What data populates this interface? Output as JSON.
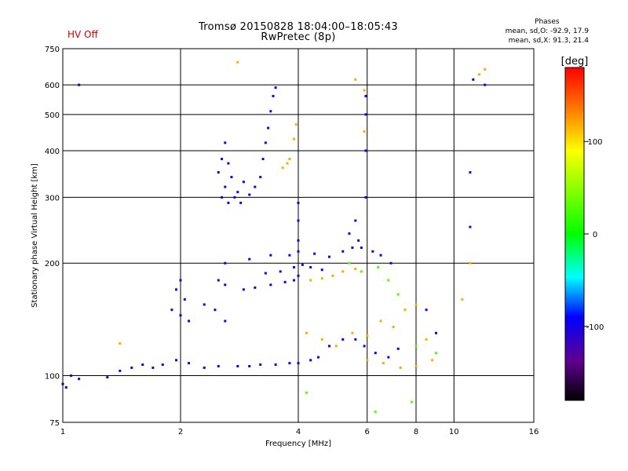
{
  "header": {
    "hv_status": "HV Off",
    "title": "Tromsø 20150828 18:04:00–18:05:43",
    "subtitle": "RwPretec (8p)",
    "stats_title": "Phases",
    "stats_line1": "mean, sd,O: -92.9, 17.9",
    "stats_line2": "mean, sd,X:  91.3, 21.4"
  },
  "colors": {
    "background": "#ffffff",
    "frame": "#000000",
    "hv_off": "#d00000"
  },
  "chart_data": {
    "type": "scatter",
    "title": "Tromsø 20150828 18:04:00–18:05:43",
    "subtitle": "RwPretec (8p)",
    "xlabel": "Frequency [MHz]",
    "ylabel": "Stationary phase Virtual Height [km]",
    "x_scale": "log",
    "y_scale": "log",
    "xlim": [
      1,
      16
    ],
    "ylim": [
      75,
      750
    ],
    "x_ticks": [
      1,
      2,
      4,
      6,
      8,
      10,
      16
    ],
    "x_tick_labels": [
      "1",
      "2",
      "4",
      "6",
      "8",
      "10",
      "16"
    ],
    "y_ticks": [
      75,
      100,
      200,
      300,
      400,
      500,
      600,
      750
    ],
    "y_tick_labels": [
      "75",
      "100",
      "200",
      "300",
      "400",
      "500",
      "600",
      "750"
    ],
    "grid": true,
    "colorbar": {
      "label": "[deg]",
      "range": [
        -180,
        180
      ],
      "ticks": [
        100,
        0,
        -100
      ],
      "tick_labels": [
        "100",
        "0",
        "-100"
      ],
      "colormap": "rainbow"
    },
    "series": [
      {
        "type": "scatter",
        "phase": -100,
        "points": [
          [
            1.0,
            95
          ],
          [
            1.02,
            93
          ],
          [
            1.05,
            100
          ],
          [
            1.1,
            98
          ],
          [
            1.3,
            99
          ],
          [
            1.4,
            103
          ],
          [
            1.5,
            105
          ],
          [
            1.6,
            107
          ],
          [
            1.7,
            105
          ],
          [
            1.8,
            107
          ],
          [
            1.95,
            110
          ],
          [
            2.1,
            108
          ],
          [
            2.3,
            105
          ],
          [
            2.5,
            106
          ],
          [
            2.8,
            106
          ],
          [
            3.0,
            106
          ],
          [
            3.2,
            107
          ],
          [
            3.5,
            107
          ],
          [
            3.8,
            108
          ],
          [
            4.0,
            108
          ],
          [
            4.3,
            110
          ],
          [
            4.5,
            112
          ],
          [
            4.8,
            120
          ],
          [
            5.2,
            125
          ],
          [
            5.6,
            125
          ],
          [
            5.9,
            120
          ],
          [
            6.3,
            115
          ],
          [
            6.8,
            112
          ],
          [
            7.2,
            118
          ],
          [
            1.9,
            150
          ],
          [
            2.0,
            145
          ],
          [
            2.05,
            160
          ],
          [
            2.1,
            140
          ],
          [
            1.95,
            170
          ],
          [
            2.0,
            180
          ],
          [
            2.3,
            155
          ],
          [
            2.45,
            150
          ],
          [
            2.6,
            140
          ],
          [
            2.5,
            180
          ],
          [
            2.6,
            175
          ],
          [
            2.9,
            170
          ],
          [
            3.1,
            172
          ],
          [
            3.4,
            175
          ],
          [
            3.7,
            178
          ],
          [
            3.9,
            180
          ],
          [
            4.0,
            185
          ],
          [
            3.3,
            188
          ],
          [
            3.6,
            190
          ],
          [
            3.9,
            195
          ],
          [
            4.1,
            198
          ],
          [
            4.3,
            195
          ],
          [
            4.6,
            192
          ],
          [
            2.6,
            200
          ],
          [
            3.0,
            205
          ],
          [
            3.4,
            210
          ],
          [
            3.8,
            210
          ],
          [
            4.0,
            215
          ],
          [
            4.4,
            212
          ],
          [
            4.8,
            208
          ],
          [
            5.2,
            215
          ],
          [
            5.5,
            220
          ],
          [
            5.7,
            230
          ],
          [
            6.2,
            215
          ],
          [
            6.5,
            210
          ],
          [
            6.9,
            200
          ],
          [
            2.55,
            300
          ],
          [
            2.6,
            320
          ],
          [
            2.65,
            290
          ],
          [
            2.7,
            340
          ],
          [
            2.75,
            300
          ],
          [
            2.8,
            310
          ],
          [
            2.85,
            290
          ],
          [
            2.9,
            330
          ],
          [
            3.0,
            305
          ],
          [
            3.1,
            320
          ],
          [
            3.2,
            340
          ],
          [
            3.25,
            380
          ],
          [
            3.3,
            420
          ],
          [
            3.35,
            460
          ],
          [
            3.4,
            510
          ],
          [
            3.45,
            560
          ],
          [
            3.5,
            590
          ],
          [
            2.55,
            380
          ],
          [
            2.5,
            350
          ],
          [
            2.6,
            420
          ],
          [
            2.65,
            370
          ],
          [
            4.0,
            230
          ],
          [
            4.0,
            260
          ],
          [
            4.0,
            290
          ],
          [
            5.4,
            240
          ],
          [
            5.6,
            260
          ],
          [
            5.8,
            220
          ],
          [
            5.95,
            300
          ],
          [
            5.95,
            400
          ],
          [
            5.95,
            500
          ],
          [
            5.95,
            560
          ],
          [
            8.5,
            150
          ],
          [
            9.0,
            130
          ],
          [
            11.0,
            350
          ],
          [
            11.0,
            250
          ],
          [
            11.2,
            620
          ],
          [
            12.0,
            600
          ],
          [
            1.1,
            600
          ]
        ]
      },
      {
        "type": "scatter",
        "phase": 120,
        "points": [
          [
            3.65,
            360
          ],
          [
            3.75,
            370
          ],
          [
            3.8,
            380
          ],
          [
            3.9,
            430
          ],
          [
            3.95,
            470
          ],
          [
            4.3,
            180
          ],
          [
            4.6,
            182
          ],
          [
            4.9,
            185
          ],
          [
            5.2,
            190
          ],
          [
            5.6,
            193
          ],
          [
            4.2,
            130
          ],
          [
            4.6,
            125
          ],
          [
            5.0,
            120
          ],
          [
            5.5,
            130
          ],
          [
            6.0,
            128
          ],
          [
            6.5,
            140
          ],
          [
            7.0,
            135
          ],
          [
            7.5,
            150
          ],
          [
            8.0,
            155
          ],
          [
            8.5,
            125
          ],
          [
            6.0,
            110
          ],
          [
            6.6,
            108
          ],
          [
            7.3,
            105
          ],
          [
            8.0,
            106
          ],
          [
            8.8,
            110
          ],
          [
            5.6,
            620
          ],
          [
            5.9,
            580
          ],
          [
            5.9,
            450
          ],
          [
            10.5,
            160
          ],
          [
            11.0,
            200
          ],
          [
            11.6,
            640
          ],
          [
            12.0,
            660
          ],
          [
            2.8,
            690
          ],
          [
            1.4,
            122
          ]
        ]
      },
      {
        "type": "scatter",
        "phase": 30,
        "points": [
          [
            5.4,
            200
          ],
          [
            5.8,
            190
          ],
          [
            6.4,
            195
          ],
          [
            6.8,
            180
          ],
          [
            7.2,
            165
          ],
          [
            4.2,
            90
          ],
          [
            6.3,
            80
          ],
          [
            7.8,
            85
          ],
          [
            8.0,
            120
          ],
          [
            9.0,
            115
          ]
        ]
      }
    ]
  }
}
